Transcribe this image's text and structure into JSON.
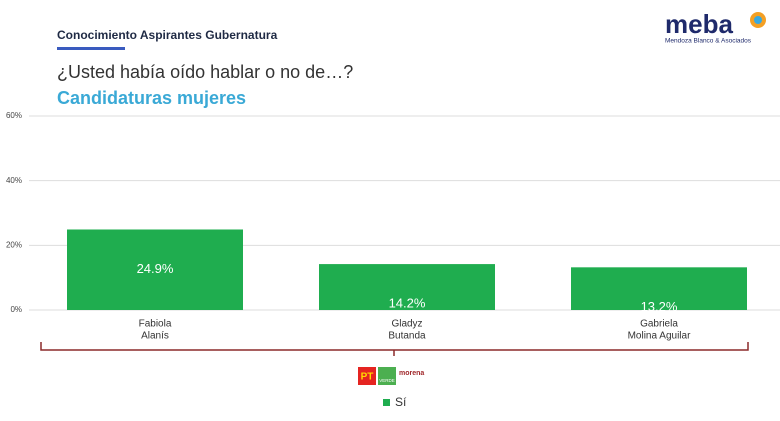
{
  "header": {
    "section": "Conocimiento Aspirantes Gubernatura",
    "question": "¿Usted había oído hablar o no de…?",
    "subtitle": "Candidaturas mujeres"
  },
  "logo": {
    "name": "meba",
    "tagline": "Mendoza Blanco & Asociados"
  },
  "parties": [
    "PT",
    "VERDE",
    "morena"
  ],
  "chart_data": {
    "type": "bar",
    "categories": [
      [
        "Fabiola",
        "Alanís"
      ],
      [
        "Gladyz",
        "Butanda"
      ],
      [
        "Gabriela",
        "Molina Aguilar"
      ]
    ],
    "series": [
      {
        "name": "Sí",
        "color": "#1fad4f",
        "values": [
          24.9,
          14.2,
          13.2
        ],
        "value_labels": [
          "24.9%",
          "14.2%",
          "13.2%"
        ]
      }
    ],
    "ylim": [
      0,
      60
    ],
    "yticks": [
      {
        "value": 0,
        "label": "0%"
      },
      {
        "value": 20,
        "label": "20%"
      },
      {
        "value": 40,
        "label": "40%"
      },
      {
        "value": 60,
        "label": "60%"
      }
    ],
    "grid": true
  }
}
